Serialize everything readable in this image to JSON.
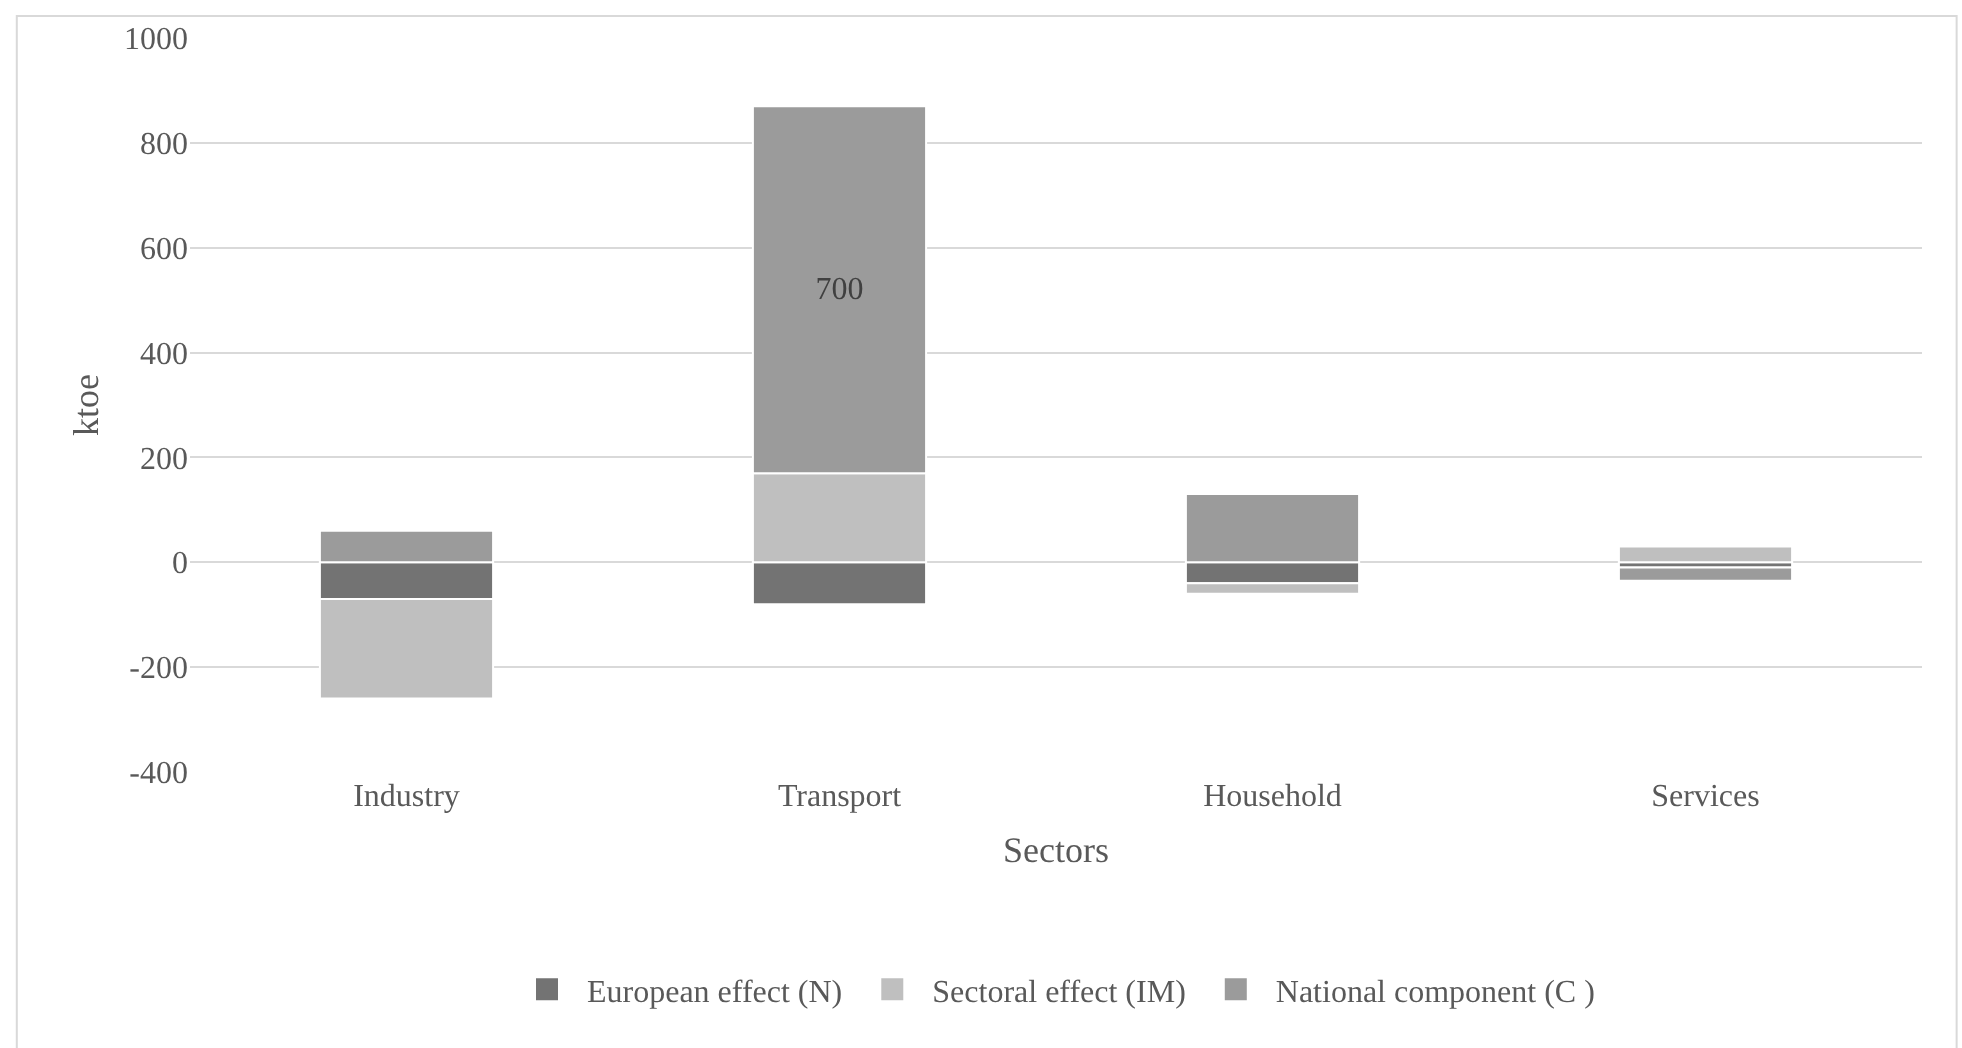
{
  "chart_data": {
    "type": "bar",
    "stacked": true,
    "xlabel": "Sectors",
    "ylabel": "ktoe",
    "categories": [
      "Industry",
      "Transport",
      "Household",
      "Services"
    ],
    "series": [
      {
        "name": "European effect (N)",
        "color": "#737373",
        "values": [
          -70,
          -80,
          -40,
          -10
        ]
      },
      {
        "name": "Sectoral effect (IM)",
        "color": "#bfbfbf",
        "values": [
          -190,
          170,
          -20,
          30
        ]
      },
      {
        "name": "National component (C )",
        "color": "#9b9b9b",
        "values": [
          60,
          700,
          130,
          -25
        ],
        "value_labels": [
          null,
          "700",
          null,
          null
        ]
      }
    ],
    "ylim": [
      -400,
      1000
    ],
    "yticks": [
      -400,
      -200,
      0,
      200,
      400,
      600,
      800,
      1000
    ],
    "grid": "y",
    "legend": "bottom"
  }
}
